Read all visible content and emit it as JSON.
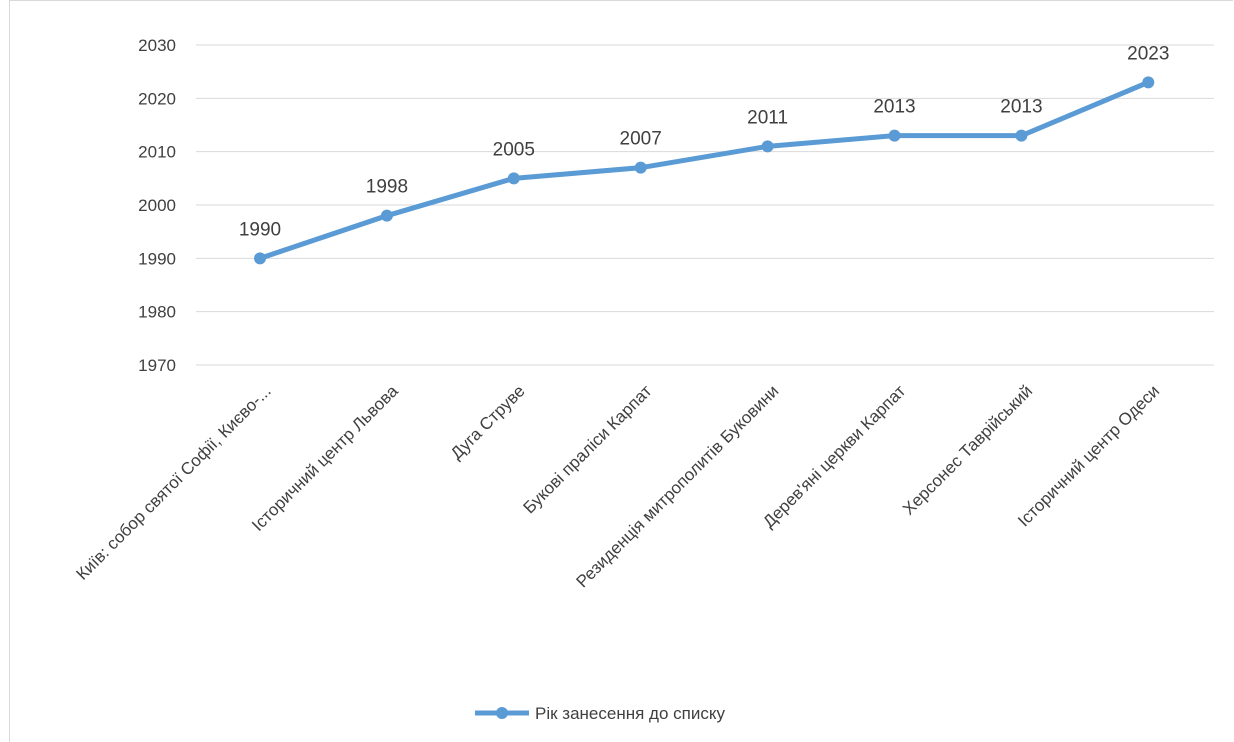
{
  "chart_data": {
    "type": "line",
    "categories": [
      "Київ: собор святої Софії, Києво-...",
      "Історичний центр Львова",
      "Дуга Струве",
      "Букові праліси Карпат",
      "Резиденція митрополитів Буковини",
      "Дерев'яні церкви Карпат",
      "Херсонес Таврійський",
      "Історичний центр Одеси"
    ],
    "series": [
      {
        "name": "Рік занесення до списку",
        "values": [
          1990,
          1998,
          2005,
          2007,
          2011,
          2013,
          2013,
          2023
        ]
      }
    ],
    "data_labels": [
      "1990",
      "1998",
      "2005",
      "2007",
      "2011",
      "2013",
      "2013",
      "2023"
    ],
    "y_ticks": [
      "1970",
      "1980",
      "1990",
      "2000",
      "2010",
      "2020",
      "2030"
    ],
    "ylim": [
      1970,
      2030
    ],
    "grid": true,
    "legend": "bottom",
    "colors": {
      "series": "#5b9bd5",
      "grid": "#d9d9d9",
      "text": "#404040"
    }
  }
}
